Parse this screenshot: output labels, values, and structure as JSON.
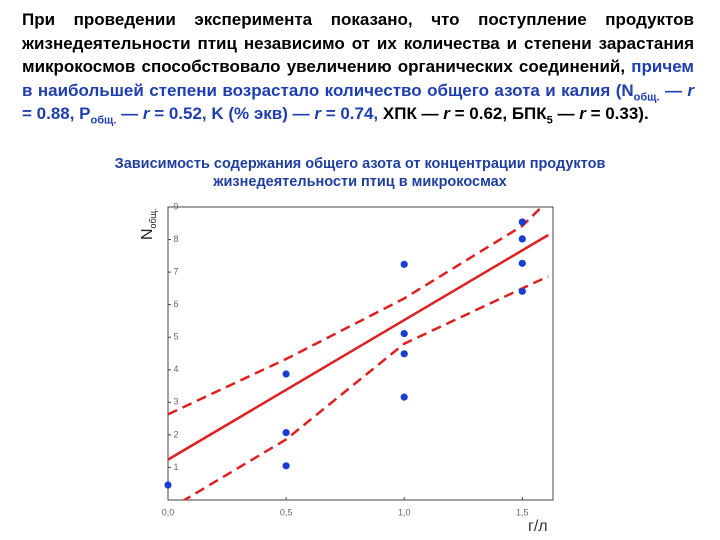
{
  "text": {
    "segments": [
      {
        "text": "При проведении эксперимента показано, что поступление продуктов жизнедеятельности птиц независимо от их количества и степени зарастания микрокосмов способствовало увеличению органических соединений, ",
        "color": "#000000"
      },
      {
        "text": "причем в наибольшей степени возрастало количество общего азота и калия (N",
        "color": "#1f3fb0"
      },
      {
        "text": "общ.",
        "color": "#1f3fb0",
        "style": "sub"
      },
      {
        "text": " — ",
        "color": "#1f3fb0"
      },
      {
        "text": "r",
        "color": "#1f3fb0",
        "style": "italic"
      },
      {
        "text": " = 0.88, P",
        "color": "#1f3fb0"
      },
      {
        "text": "общ.",
        "color": "#1f3fb0",
        "style": "sub"
      },
      {
        "text": " — ",
        "color": "#1f3fb0"
      },
      {
        "text": "r",
        "color": "#1f3fb0",
        "style": "italic"
      },
      {
        "text": " = 0.52, K (% экв) — ",
        "color": "#1f3fb0"
      },
      {
        "text": "r",
        "color": "#1f3fb0",
        "style": "italic"
      },
      {
        "text": " = 0.74, ",
        "color": "#1f3fb0"
      },
      {
        "text": "ХПК — ",
        "color": "#000000"
      },
      {
        "text": "r",
        "color": "#000000",
        "style": "italic"
      },
      {
        "text": " = 0.62, БПК",
        "color": "#000000"
      },
      {
        "text": "5",
        "color": "#000000",
        "style": "sub"
      },
      {
        "text": " — ",
        "color": "#000000"
      },
      {
        "text": "r",
        "color": "#000000",
        "style": "italic"
      },
      {
        "text": " = 0.33).",
        "color": "#000000"
      }
    ]
  },
  "chart_data": {
    "type": "scatter",
    "title": "Зависимость содержания общего азота от концентрации продуктов жизнедеятельности птиц в микрокосмах",
    "y_label": "N",
    "y_label_sub": "общ.",
    "x_label": "г/л",
    "xlim": [
      0,
      1.63
    ],
    "ylim": [
      0,
      9
    ],
    "xticks": [
      {
        "value": 0,
        "label": "0,0"
      },
      {
        "value": 0.5,
        "label": "0,5"
      },
      {
        "value": 1.0,
        "label": "1,0"
      },
      {
        "value": 1.5,
        "label": "1,5"
      }
    ],
    "yticks": [
      1,
      2,
      3,
      4,
      5,
      6,
      7,
      8,
      9
    ],
    "series": [
      {
        "color": "#1a3fd0",
        "x": [
          0,
          0.5,
          0.5,
          0.5,
          1.0,
          1.0,
          1.0,
          1.0,
          1.5,
          1.5,
          1.5,
          1.5
        ],
        "values": [
          0.46,
          3.87,
          2.07,
          1.05,
          7.24,
          5.11,
          4.49,
          3.16,
          8.54,
          8.02,
          7.27,
          6.41
        ]
      }
    ],
    "lines": [
      {
        "color": "#e02020",
        "style": "solid",
        "x": [
          0,
          1.61
        ],
        "values": [
          1.24,
          8.14
        ]
      },
      {
        "color": "#e02020",
        "style": "dashed",
        "x": [
          0,
          0.5,
          1.0,
          1.5,
          1.61
        ],
        "values": [
          2.63,
          4.33,
          6.19,
          8.42,
          9.2
        ]
      },
      {
        "color": "#e02020",
        "style": "dashed",
        "x": [
          0,
          0.5,
          1.0,
          1.5,
          1.61
        ],
        "values": [
          -0.3,
          1.86,
          4.8,
          6.5,
          6.87
        ]
      }
    ]
  }
}
